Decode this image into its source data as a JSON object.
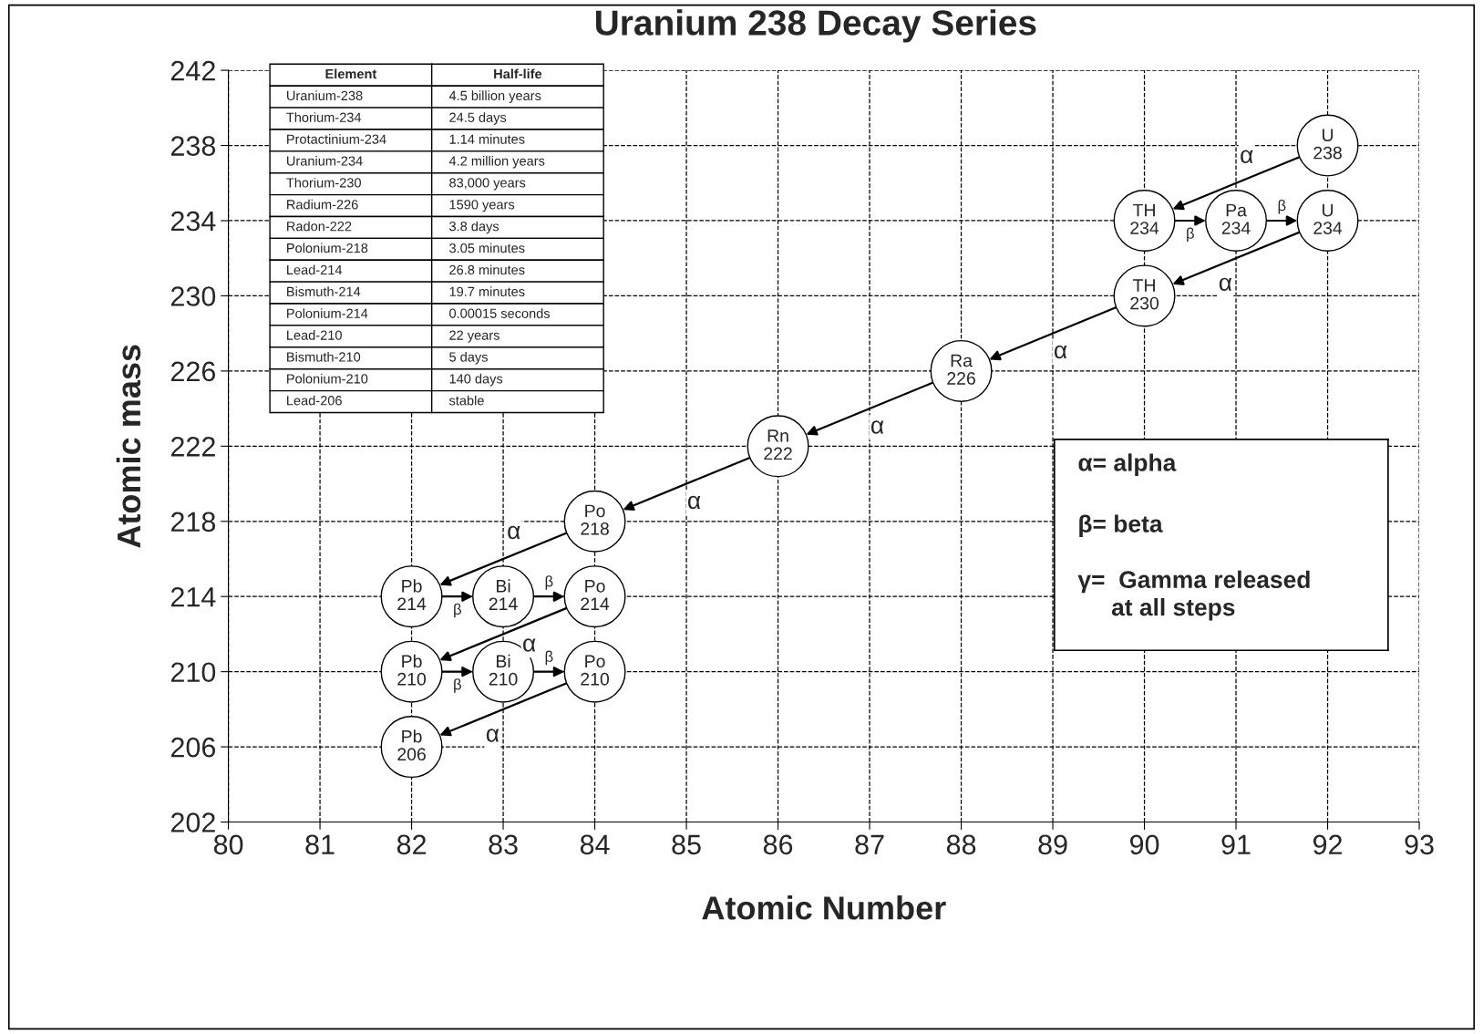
{
  "chart_data": [
    {
      "type": "scatter",
      "title": "Uranium 238 Decay Series",
      "xlabel": "Atomic Number",
      "ylabel": "Atomic mass",
      "marker": "circle",
      "grid": true,
      "line_style": "dashed",
      "x": [
        92,
        90,
        91,
        92,
        90,
        88,
        86,
        84,
        82,
        83,
        84,
        82,
        83,
        84,
        82
      ],
      "values": [
        238,
        234,
        234,
        234,
        230,
        226,
        222,
        218,
        214,
        214,
        214,
        210,
        210,
        210,
        206
      ],
      "value_labels": [
        "U\n238",
        "TH\n234",
        "Pa\n234",
        "U\n234",
        "TH\n230",
        "Ra\n226",
        "Rn\n222",
        "Po\n218",
        "Pb\n214",
        "Bi\n214",
        "Po\n214",
        "Pb\n210",
        "Bi\n210",
        "Po\n210",
        "Pb\n206"
      ],
      "xlim": [
        80,
        93
      ],
      "ylim": [
        202,
        242
      ],
      "xticks": [
        80,
        81,
        82,
        83,
        84,
        85,
        86,
        87,
        88,
        89,
        90,
        91,
        92,
        93
      ],
      "yticks": [
        202,
        206,
        210,
        214,
        218,
        222,
        226,
        230,
        234,
        238,
        242
      ],
      "annotations": [
        "α",
        "β",
        "β",
        "α",
        "α",
        "α",
        "α",
        "α",
        "β",
        "β",
        "α",
        "β",
        "β",
        "α"
      ]
    },
    {
      "type": "other",
      "categories": [
        "Element",
        "Half-life"
      ],
      "cell_labels": [
        [
          "Uranium-238",
          "4.5 billion years"
        ],
        [
          "Thorium-234",
          "24.5 days"
        ],
        [
          "Protactinium-234",
          "1.14 minutes"
        ],
        [
          "Uranium-234",
          "4.2 million years"
        ],
        [
          "Thorium-230",
          "83,000 years"
        ],
        [
          "Radium-226",
          "1590 years"
        ],
        [
          "Radon-222",
          "3.8 days"
        ],
        [
          "Polonium-218",
          "3.05 minutes"
        ],
        [
          "Lead-214",
          "26.8 minutes"
        ],
        [
          "Bismuth-214",
          "19.7 minutes"
        ],
        [
          "Polonium-214",
          "0.00015 seconds"
        ],
        [
          "Lead-210",
          "22 years"
        ],
        [
          "Bismuth-210",
          "5 days"
        ],
        [
          "Polonium-210",
          "140 days"
        ],
        [
          "Lead-206",
          "stable"
        ]
      ]
    },
    {
      "type": "other",
      "annotations": [
        "α= alpha",
        "β= beta",
        "γ=  Gamma released\n     at all steps"
      ]
    }
  ]
}
